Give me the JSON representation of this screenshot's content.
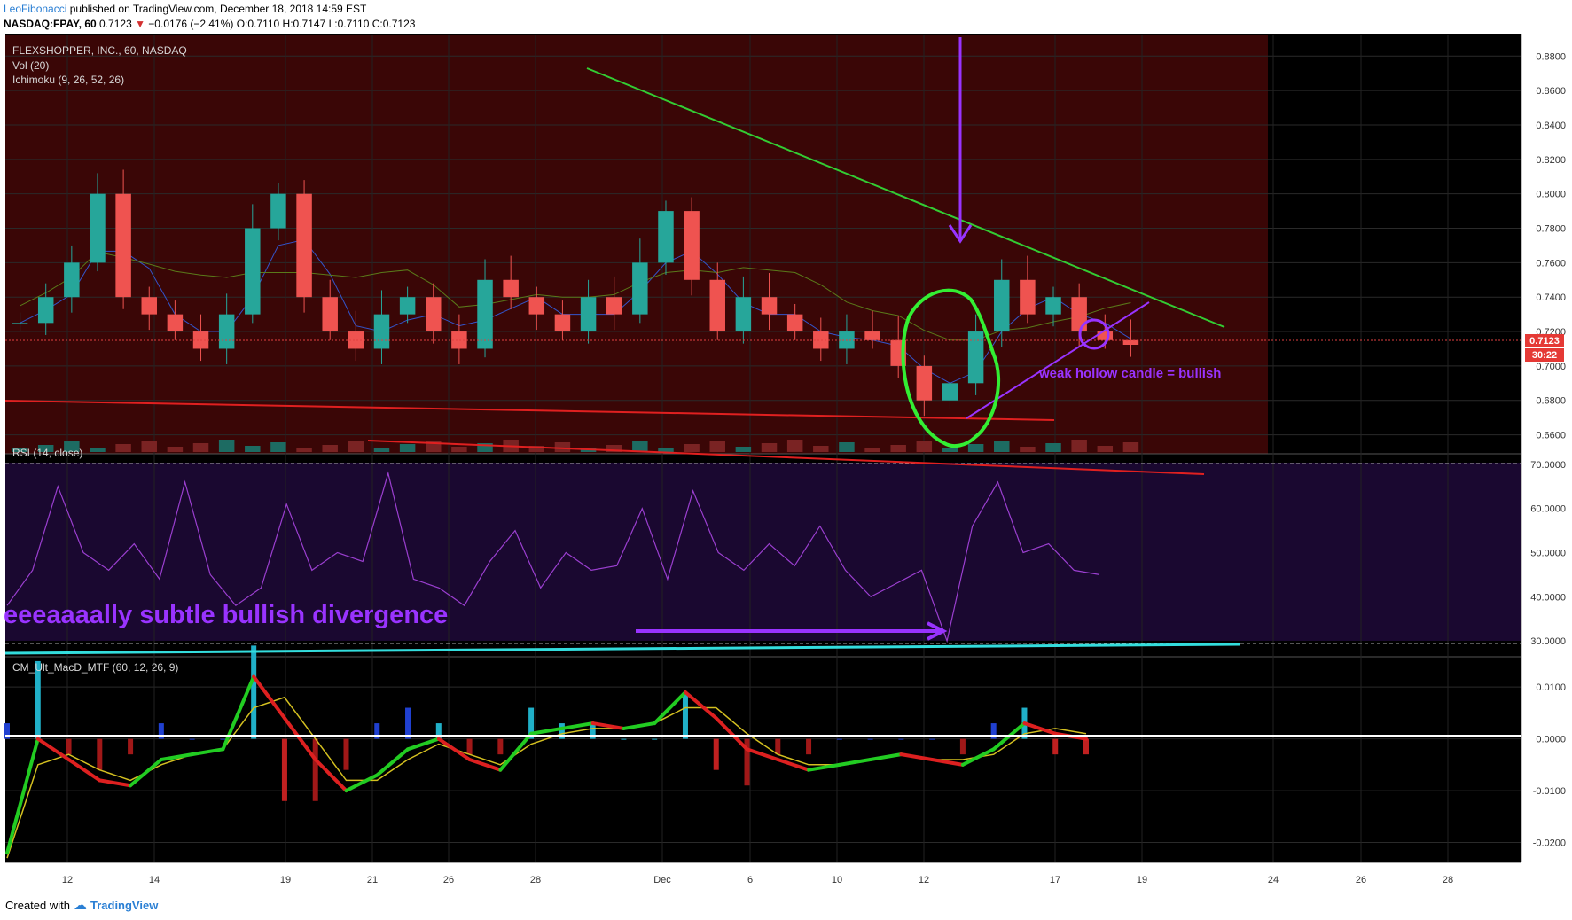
{
  "header": {
    "author": "LeoFibonacci",
    "published": " published on TradingView.com, December 18, 2018 14:59 EST",
    "symbol": "NASDAQ:FPAY, 60",
    "last": " 0.7123 ",
    "arrow": "▼",
    "change": " −0.0176 (−2.41%) ",
    "ohlc": "O:0.7110 H:0.7147 L:0.7110 C:0.7123"
  },
  "legend": {
    "main": "FLEXSHOPPER, INC., 60, NASDAQ",
    "vol": "Vol (20)",
    "ichimoku": "Ichimoku (9, 26, 52, 26)",
    "rsi": "RSI (14, close)",
    "macd": "CM_Ult_MacD_MTF (60, 12, 26, 9)"
  },
  "annotations": {
    "candle_note": "weak hollow candle = bullish",
    "divergence_note": "eeeaaaally subtle bullish divergence"
  },
  "price_tag": "0.7123",
  "time_tag": "30:22",
  "footer": {
    "created_with": "Created with",
    "brand": "TradingView"
  },
  "colors": {
    "background": "#000000",
    "cloud_red": "#5a0a0a",
    "rsi_band": "#1e0a33",
    "up": "#26a69a",
    "down": "#ef5350",
    "annotation_purple": "#9933ff",
    "trend_green": "#33cc33",
    "trend_red": "#e02020",
    "cyan": "#33dddd"
  },
  "x_labels": [
    "12",
    "14",
    "19",
    "21",
    "26",
    "28",
    "Dec",
    "6",
    "10",
    "12",
    "17",
    "19",
    "24",
    "26",
    "28"
  ],
  "chart_data": [
    {
      "type": "candlestick",
      "title": "FLEXSHOPPER, INC., 60, NASDAQ",
      "y_ticks": [
        "0.8800",
        "0.8600",
        "0.8400",
        "0.8200",
        "0.8000",
        "0.7800",
        "0.7600",
        "0.7400",
        "0.7200",
        "0.7000",
        "0.6800",
        "0.6600"
      ],
      "ylim": [
        0.65,
        0.892
      ],
      "last_price": 0.7123,
      "approx_close_series": [
        0.725,
        0.74,
        0.76,
        0.8,
        0.74,
        0.73,
        0.72,
        0.71,
        0.73,
        0.78,
        0.8,
        0.74,
        0.72,
        0.71,
        0.73,
        0.74,
        0.72,
        0.71,
        0.75,
        0.74,
        0.73,
        0.72,
        0.74,
        0.73,
        0.76,
        0.79,
        0.75,
        0.72,
        0.74,
        0.73,
        0.72,
        0.71,
        0.72,
        0.715,
        0.7,
        0.68,
        0.69,
        0.72,
        0.75,
        0.73,
        0.74,
        0.72,
        0.715,
        0.7123
      ]
    },
    {
      "type": "line",
      "title": "RSI (14, close)",
      "y_ticks": [
        "70.0000",
        "60.0000",
        "50.0000",
        "40.0000",
        "30.0000"
      ],
      "ylim": [
        27,
        72
      ],
      "series": [
        {
          "name": "RSI",
          "values": [
            38,
            46,
            65,
            50,
            46,
            52,
            44,
            66,
            45,
            38,
            42,
            61,
            46,
            50,
            48,
            68,
            44,
            42,
            38,
            48,
            55,
            42,
            50,
            46,
            47,
            60,
            44,
            64,
            50,
            46,
            52,
            47,
            56,
            46,
            40,
            43,
            46,
            30,
            56,
            66,
            50,
            52,
            46,
            45
          ]
        }
      ]
    },
    {
      "type": "line",
      "title": "CM_Ult_MacD_MTF (60, 12, 26, 9)",
      "y_ticks": [
        "0.0100",
        "0.0000",
        "-0.0100",
        "-0.0200"
      ],
      "ylim": [
        -0.0235,
        0.0155
      ],
      "series": [
        {
          "name": "MACD",
          "values": [
            -0.022,
            0.0,
            -0.004,
            -0.008,
            -0.009,
            -0.004,
            -0.003,
            -0.002,
            0.012,
            0.004,
            -0.004,
            -0.01,
            -0.007,
            -0.002,
            0.0,
            -0.004,
            -0.006,
            0.001,
            0.002,
            0.003,
            0.002,
            0.003,
            0.009,
            0.004,
            -0.002,
            -0.004,
            -0.006,
            -0.005,
            -0.004,
            -0.003,
            -0.004,
            -0.005,
            -0.002,
            0.003,
            0.001,
            0.0
          ]
        },
        {
          "name": "Signal",
          "values": [
            -0.023,
            -0.005,
            -0.003,
            -0.006,
            -0.008,
            -0.005,
            -0.003,
            -0.002,
            0.006,
            0.008,
            0.0,
            -0.008,
            -0.008,
            -0.004,
            -0.001,
            -0.003,
            -0.005,
            -0.001,
            0.001,
            0.002,
            0.002,
            0.003,
            0.006,
            0.006,
            0.001,
            -0.003,
            -0.005,
            -0.005,
            -0.004,
            -0.003,
            -0.004,
            -0.004,
            -0.003,
            0.001,
            0.002,
            0.001
          ]
        }
      ]
    }
  ]
}
